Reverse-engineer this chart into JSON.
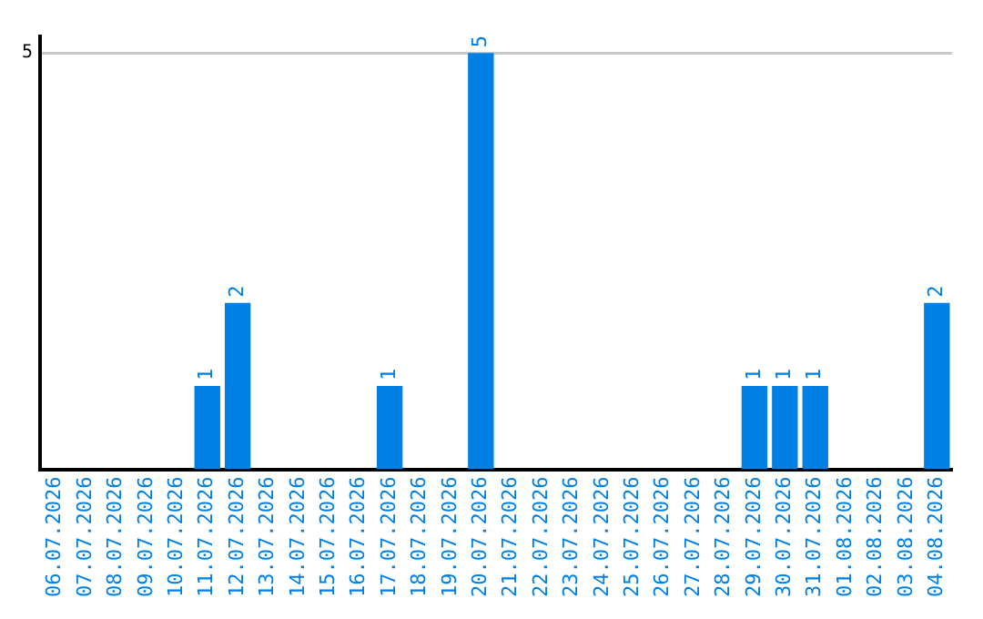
{
  "chart_data": {
    "type": "bar",
    "categories": [
      "06.07.2026",
      "07.07.2026",
      "08.07.2026",
      "09.07.2026",
      "10.07.2026",
      "11.07.2026",
      "12.07.2026",
      "13.07.2026",
      "14.07.2026",
      "15.07.2026",
      "16.07.2026",
      "17.07.2026",
      "18.07.2026",
      "19.07.2026",
      "20.07.2026",
      "21.07.2026",
      "22.07.2026",
      "23.07.2026",
      "24.07.2026",
      "25.07.2026",
      "26.07.2026",
      "27.07.2026",
      "28.07.2026",
      "29.07.2026",
      "30.07.2026",
      "31.07.2026",
      "01.08.2026",
      "02.08.2026",
      "03.08.2026",
      "04.08.2026"
    ],
    "values": [
      0,
      0,
      0,
      0,
      0,
      1,
      2,
      0,
      0,
      0,
      0,
      1,
      0,
      0,
      5,
      0,
      0,
      0,
      0,
      0,
      0,
      0,
      0,
      1,
      1,
      1,
      0,
      0,
      0,
      2
    ],
    "value_labels": [
      null,
      null,
      null,
      null,
      null,
      "1",
      "2",
      null,
      null,
      null,
      null,
      "1",
      null,
      null,
      "5",
      null,
      null,
      null,
      null,
      null,
      null,
      null,
      null,
      "1",
      "1",
      "1",
      null,
      null,
      null,
      "2"
    ],
    "color": "#0080e5",
    "ylim": [
      0,
      5.2
    ],
    "yticks": [
      5
    ],
    "grid": "y",
    "legend": false
  }
}
